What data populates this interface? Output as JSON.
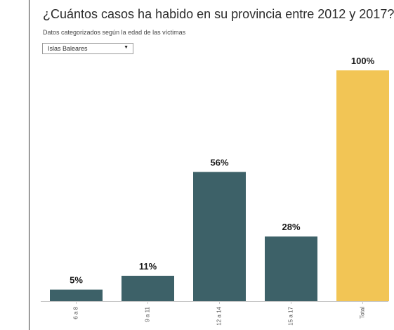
{
  "header": {
    "title": "¿Cuántos casos ha habido en su provincia entre 2012 y 2017?",
    "subtitle": "Datos categorizados según la edad de las víctimas"
  },
  "filter": {
    "selected": "Islas Baleares",
    "arrow": "▼"
  },
  "colors": {
    "bar": "#3d6168",
    "total": "#f2c555",
    "axis": "#c8c8c8",
    "text": "#1a1a1a"
  },
  "chart_data": {
    "type": "bar",
    "title": "¿Cuántos casos ha habido en su provincia entre 2012 y 2017?",
    "subtitle": "Datos categorizados según la edad de las víctimas",
    "categories": [
      "6 a 8",
      "9 a 11",
      "12 a 14",
      "15 a 17",
      "Total"
    ],
    "values": [
      5,
      11,
      56,
      28,
      100
    ],
    "data_labels": [
      "5%",
      "11%",
      "56%",
      "28%",
      "100%"
    ],
    "highlight_index": 4,
    "ylim": [
      0,
      100
    ],
    "xlabel": "",
    "ylabel": "",
    "grid": false,
    "legend": "none"
  }
}
